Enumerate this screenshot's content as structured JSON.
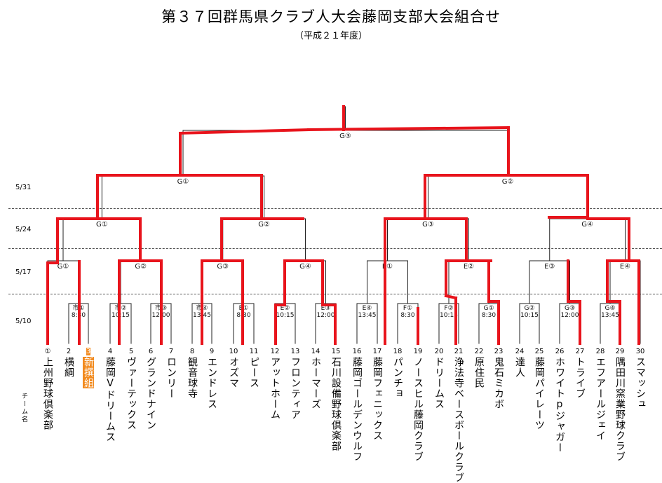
{
  "title": "第３７回群馬県クラブ人大会藤岡支部大会組合せ",
  "subtitle": "（平成２１年度）",
  "dates": [
    "5/31",
    "5/24",
    "5/17",
    "5/10"
  ],
  "team_column_label": "チーム名",
  "highlight_color": "#f28a1e",
  "winner_line_color": "#e8141c",
  "teams": [
    {
      "no": "①",
      "name": "上州野球倶楽部"
    },
    {
      "no": "2",
      "name": "横綱"
    },
    {
      "no": "3",
      "name": "新撰組",
      "highlight": true
    },
    {
      "no": "4",
      "name": "藤岡Vドリームス"
    },
    {
      "no": "5",
      "name": "ヴァーテックス"
    },
    {
      "no": "6",
      "name": "グランドナイン"
    },
    {
      "no": "7",
      "name": "ロンリー"
    },
    {
      "no": "8",
      "name": "観音球寺"
    },
    {
      "no": "9",
      "name": "エンドレス"
    },
    {
      "no": "10",
      "name": "オズマ"
    },
    {
      "no": "11",
      "name": "ピース"
    },
    {
      "no": "12",
      "name": "アットホーム"
    },
    {
      "no": "13",
      "name": "フロンティア"
    },
    {
      "no": "14",
      "name": "ホーマーズ"
    },
    {
      "no": "15",
      "name": "石川設備野球倶楽部"
    },
    {
      "no": "16",
      "name": "藤岡ゴールデンウルフ"
    },
    {
      "no": "17",
      "name": "藤岡フェニックス"
    },
    {
      "no": "18",
      "name": "パンチョ"
    },
    {
      "no": "19",
      "name": "ノースヒル藤岡クラブ"
    },
    {
      "no": "20",
      "name": "ドリームス"
    },
    {
      "no": "21",
      "name": "浄法寺ベースボールクラブ"
    },
    {
      "no": "22",
      "name": "原住民"
    },
    {
      "no": "23",
      "name": "鬼石ミカボ"
    },
    {
      "no": "24",
      "name": "達人"
    },
    {
      "no": "25",
      "name": "藤岡パイレーツ"
    },
    {
      "no": "26",
      "name": "ホワイトpジャガー"
    },
    {
      "no": "27",
      "name": "トライブ"
    },
    {
      "no": "28",
      "name": "エフアールジェイ"
    },
    {
      "no": "29",
      "name": "隅田川窯業野球クラブ"
    },
    {
      "no": "30",
      "name": "スマッシュ"
    }
  ],
  "matches_r1": [
    {
      "label": "市①",
      "time": "8:30"
    },
    {
      "label": "市②",
      "time": "10:15"
    },
    {
      "label": "市③",
      "time": "12:00"
    },
    {
      "label": "市④",
      "time": "13:45"
    },
    {
      "label": "E①",
      "time": "8:30"
    },
    {
      "label": "E②",
      "time": "10:15"
    },
    {
      "label": "E③",
      "time": "12:00"
    },
    {
      "label": "E④",
      "time": "13:45"
    },
    {
      "label": "F①",
      "time": "8:30"
    },
    {
      "label": "F②",
      "time": "10:15"
    },
    {
      "label": "G①",
      "time": "8:30"
    },
    {
      "label": "G②",
      "time": "10:15"
    },
    {
      "label": "G③",
      "time": "12:00"
    },
    {
      "label": "G④",
      "time": "13:45"
    }
  ],
  "matches_r2": [
    "G①",
    "G②",
    "G③",
    "G④",
    "E①",
    "E②",
    "E③",
    "E④"
  ],
  "matches_r3": [
    "G①",
    "G②",
    "G③",
    "G④"
  ],
  "matches_r4": [
    "G①",
    "G②"
  ],
  "matches_final": [
    "G③"
  ]
}
